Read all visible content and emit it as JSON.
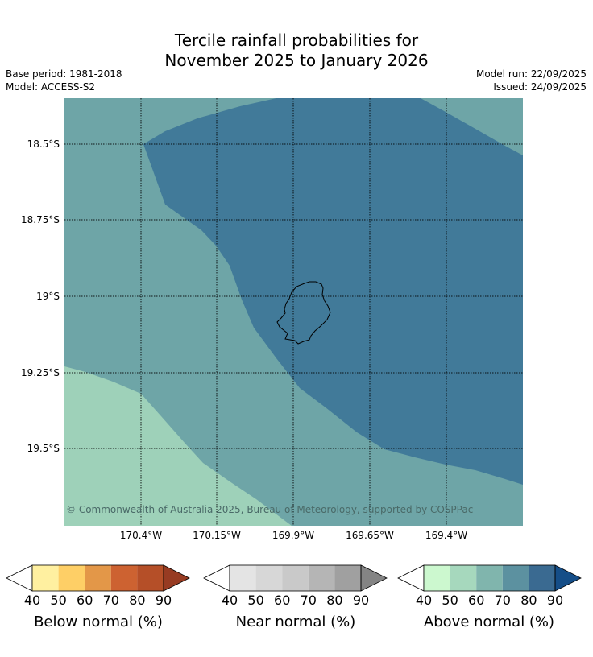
{
  "header": {
    "title_line1": "Tercile rainfall probabilities for",
    "title_line2": "November 2025 to January 2026",
    "base_period": "Base period: 1981-2018",
    "model": "Model: ACCESS-S2",
    "model_run": "Model run: 22/09/2025",
    "issued": "Issued: 24/09/2025"
  },
  "map": {
    "lat_labels": [
      "18.5°S",
      "18.75°S",
      "19°S",
      "19.25°S",
      "19.5°S"
    ],
    "lon_labels": [
      "170.4°W",
      "170.15°W",
      "169.9°W",
      "169.65°W",
      "169.4°W"
    ],
    "copyright": "© Commonwealth of Australia 2025, Bureau of Meteorology, supported by COSPPac",
    "gridlines": true,
    "categories": [
      {
        "name": "above-normal-50",
        "color": "#9ed1b9"
      },
      {
        "name": "above-normal-60",
        "color": "#6ea5a7"
      },
      {
        "name": "above-normal-70",
        "color": "#417a99"
      }
    ]
  },
  "legends": [
    {
      "title": "Below normal (%)",
      "ticks": [
        "40",
        "50",
        "60",
        "70",
        "80",
        "90"
      ],
      "colors": [
        "#fff0a0",
        "#fecf66",
        "#e39748",
        "#cd6231",
        "#b54f28",
        "#973b22"
      ],
      "low_color": "#ffffff",
      "high_color": "#973b22"
    },
    {
      "title": "Near normal (%)",
      "ticks": [
        "40",
        "50",
        "60",
        "70",
        "80",
        "90"
      ],
      "colors": [
        "#e4e4e4",
        "#d7d7d7",
        "#c9c9c9",
        "#b5b5b5",
        "#a0a0a0",
        "#848484"
      ],
      "low_color": "#ffffff",
      "high_color": "#848484"
    },
    {
      "title": "Above normal (%)",
      "ticks": [
        "40",
        "50",
        "60",
        "70",
        "80",
        "90"
      ],
      "colors": [
        "#ccf8cf",
        "#a6d8bd",
        "#80b5ad",
        "#5c91a0",
        "#3a6a91",
        "#154e88"
      ],
      "low_color": "#ffffff",
      "high_color": "#154e88"
    }
  ]
}
